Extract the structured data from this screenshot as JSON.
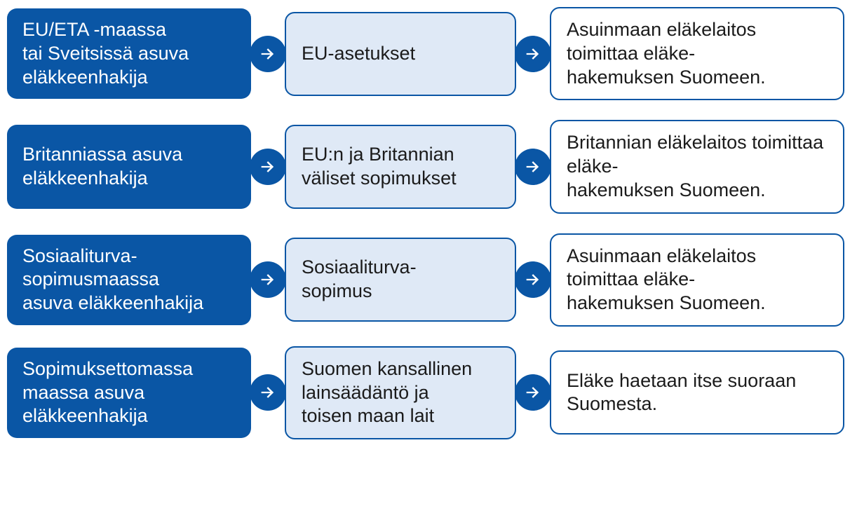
{
  "colors": {
    "primary": "#0a56a5",
    "lightFill": "#dfe9f6",
    "border": "#0a56a5",
    "whiteFill": "#ffffff",
    "arrowCircle": "#0a56a5",
    "arrowIcon": "#ffffff",
    "textOnPrimary": "#ffffff",
    "textOnLight": "#1b1b1b",
    "textOnWhite": "#1b1b1b"
  },
  "layout": {
    "borderWidth": "2.5px",
    "borderRadius": "14px",
    "rowGap": "28px"
  },
  "rows": [
    {
      "left": "EU/ETA -maassa\ntai Sveitsissä asuva\neläkkeenhakija",
      "mid": "EU-asetukset",
      "right": "Asuinmaan eläkelaitos toimittaa eläke-\nhakemuksen Suomeen."
    },
    {
      "left": "Britanniassa asuva eläkkeenhakija",
      "mid": "EU:n ja Britannian\nväliset sopimukset",
      "right": "Britannian eläkelaitos toimittaa eläke-\nhakemuksen Suomeen."
    },
    {
      "left": "Sosiaaliturva-\nsopimusmaassa\nasuva eläkkeenhakija",
      "mid": "Sosiaaliturva-\nsopimus",
      "right": "Asuinmaan eläkelaitos toimittaa eläke-\nhakemuksen Suomeen."
    },
    {
      "left": "Sopimuksettomassa\nmaassa asuva\neläkkeenhakija",
      "mid": "Suomen kansallinen lainsäädäntö ja\ntoisen maan lait",
      "right": "Eläke haetaan itse suoraan Suomesta."
    }
  ]
}
